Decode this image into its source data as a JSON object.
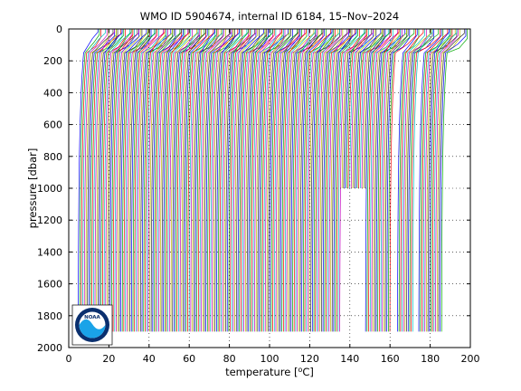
{
  "chart_data": {
    "type": "line",
    "title": "WMO ID 5904674, internal ID 6184, 15–Nov–2024",
    "xlabel": "temperature [°C]",
    "xlabel_main": "temperature [",
    "xlabel_degree": "o",
    "xlabel_unit": "C]",
    "ylabel": "pressure [dbar]",
    "xlim": [
      0,
      200
    ],
    "ylim": [
      2000,
      0
    ],
    "y_reversed": true,
    "grid": true,
    "grid_style": "dotted",
    "legend": "none",
    "xticks": [
      "0",
      "20",
      "40",
      "60",
      "80",
      "100",
      "120",
      "140",
      "160",
      "180",
      "200"
    ],
    "yticks": [
      "0",
      "200",
      "400",
      "600",
      "800",
      "1000",
      "1200",
      "1400",
      "1600",
      "1800",
      "2000"
    ],
    "series_colors": [
      "#0000ff",
      "#00aa00",
      "#ff0000",
      "#00bfbf",
      "#bf00bf",
      "#bfbf00",
      "#333333"
    ],
    "profiles": {
      "description": "stacked temperature profiles, each successive profile offset along the x axis",
      "count": 240,
      "offset_start": 5,
      "offset_end": 186,
      "bottom_pressure_full": 1900,
      "bottom_pressure_shallow": 1000,
      "shallow_offset_range": [
        136,
        148
      ],
      "gap_offset_ranges": [
        [
          161,
          164
        ],
        [
          172,
          174
        ]
      ]
    }
  },
  "logo": {
    "name": "noaa-logo",
    "text": "NOAA",
    "colors": {
      "outer": "#0a2f6e",
      "sky": "#ffffff",
      "water": "#1aa3e8"
    }
  }
}
